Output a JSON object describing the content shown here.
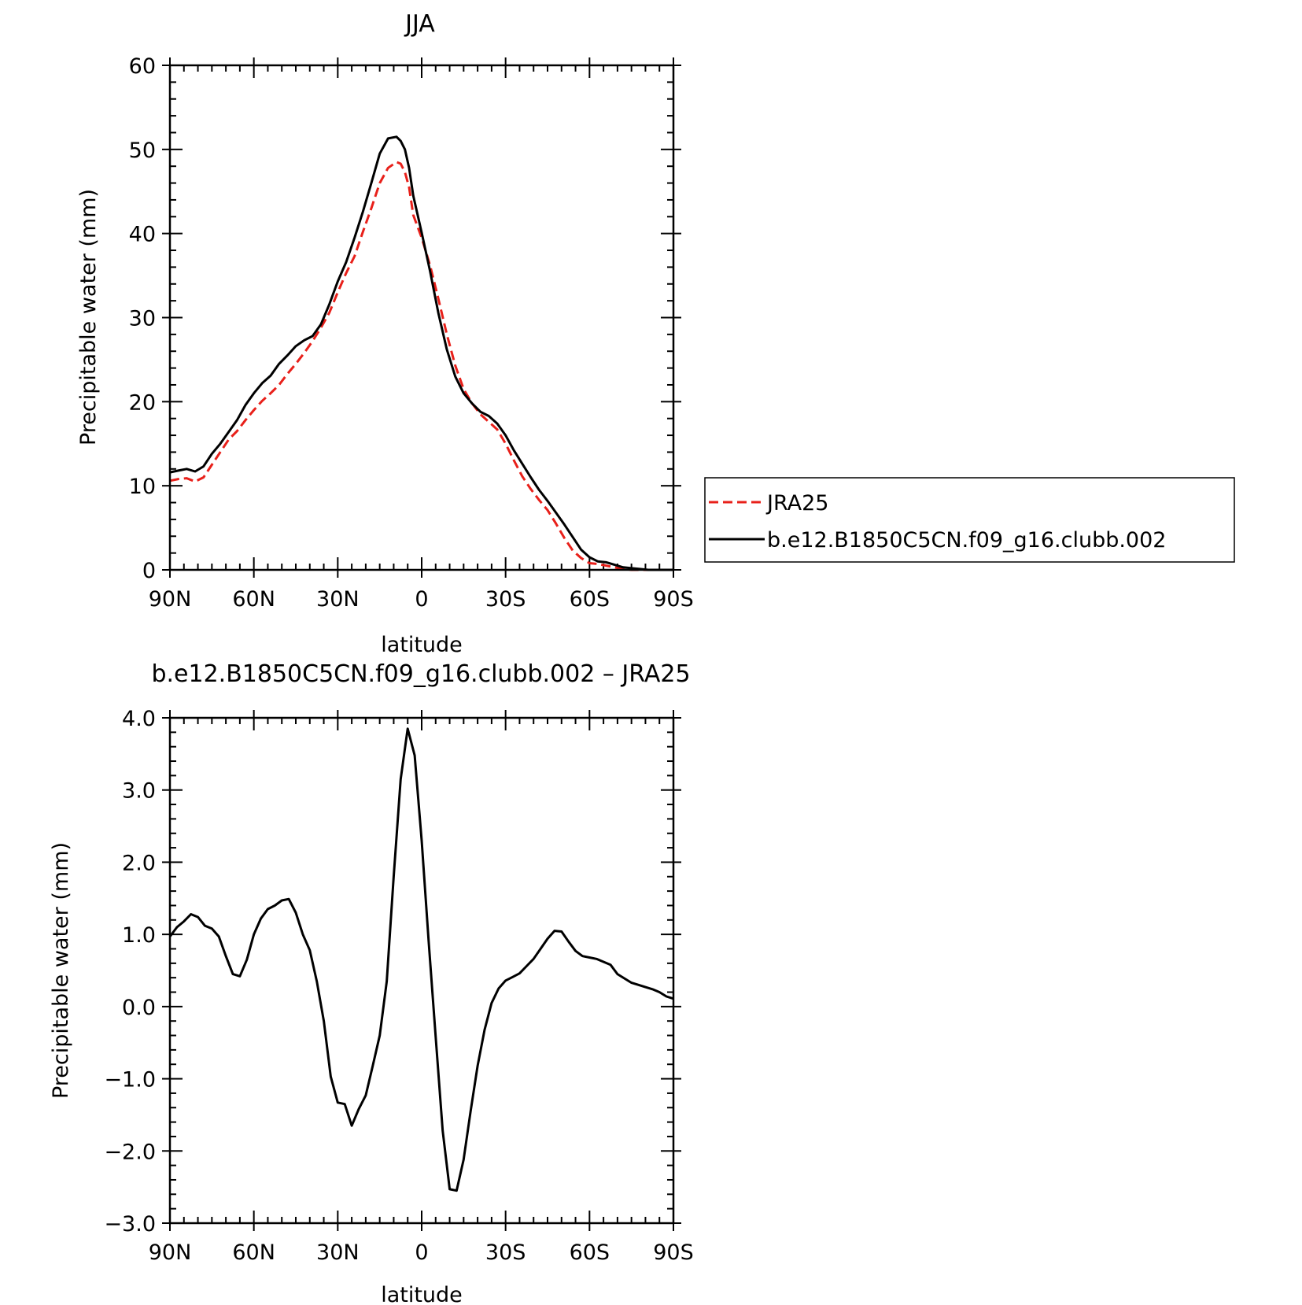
{
  "chart_data": [
    {
      "type": "line",
      "title": "JJA",
      "xlabel": "latitude",
      "ylabel": "Precipitable water (mm)",
      "xlim": [
        90,
        -90
      ],
      "ylim": [
        0,
        60
      ],
      "x_ticks": [
        90,
        60,
        30,
        0,
        -30,
        -60,
        -90
      ],
      "x_tick_labels": [
        "90N",
        "60N",
        "30N",
        "0",
        "30S",
        "60S",
        "90S"
      ],
      "y_ticks": [
        0,
        10,
        20,
        30,
        40,
        50,
        60
      ],
      "y_tick_labels": [
        "0",
        "10",
        "20",
        "30",
        "40",
        "50",
        "60"
      ],
      "legend_position": "right",
      "grid": false,
      "series": [
        {
          "name": "JRA25",
          "color": "#e8201a",
          "dash": true,
          "x": [
            90,
            87,
            84,
            81,
            78,
            75,
            72,
            69,
            66,
            63,
            60,
            57,
            54,
            51,
            48,
            45,
            42,
            39,
            36,
            33,
            30,
            27,
            24,
            21,
            18,
            15,
            12,
            9,
            7.5,
            6,
            4.5,
            3,
            0,
            -3,
            -6,
            -9,
            -12,
            -15,
            -18,
            -21,
            -24,
            -27,
            -30,
            -33,
            -36,
            -39,
            -42,
            -45,
            -48,
            -51,
            -54,
            -57,
            -60,
            -63,
            -66,
            -69,
            -72,
            -75,
            -78,
            -81,
            -84,
            -87,
            -90
          ],
          "values": [
            10.6,
            10.8,
            10.9,
            10.5,
            11,
            12.5,
            14,
            15.5,
            16.5,
            17.8,
            19,
            20.1,
            21,
            22,
            23.3,
            24.5,
            25.8,
            27.2,
            28.8,
            30.6,
            33,
            35.3,
            37.3,
            40.2,
            43,
            46,
            47.8,
            48.5,
            48.3,
            47.3,
            45.5,
            42.2,
            39.5,
            36.2,
            32.2,
            28,
            24.3,
            21.5,
            19.8,
            18.5,
            17.6,
            16.7,
            15,
            13,
            11.1,
            9.6,
            8.3,
            7.1,
            5.5,
            3.8,
            2.3,
            1.4,
            0.8,
            0.7,
            0.5,
            0.3,
            0.1,
            0,
            0,
            0,
            0,
            0,
            0
          ]
        },
        {
          "name": "b.e12.B1850C5CN.f09_g16.clubb.002",
          "color": "#000000",
          "dash": false,
          "x": [
            90,
            87,
            84,
            81,
            78,
            75,
            72,
            69,
            66,
            63,
            60,
            57,
            54,
            51,
            48,
            45,
            42,
            39,
            36,
            33,
            30,
            27,
            24,
            21,
            18,
            15,
            12,
            9,
            7.5,
            6,
            4.5,
            3,
            0,
            -3,
            -6,
            -9,
            -12,
            -15,
            -18,
            -21,
            -24,
            -27,
            -30,
            -33,
            -36,
            -39,
            -42,
            -45,
            -48,
            -51,
            -54,
            -57,
            -60,
            -63,
            -66,
            -69,
            -72,
            -75,
            -78,
            -81,
            -84,
            -87,
            -90
          ],
          "values": [
            11.6,
            11.8,
            12,
            11.7,
            12.3,
            13.8,
            15,
            16.4,
            17.8,
            19.6,
            21,
            22.2,
            23.1,
            24.5,
            25.5,
            26.6,
            27.3,
            27.8,
            29.2,
            31.6,
            34.3,
            36.6,
            39.5,
            42.6,
            46,
            49.5,
            51.3,
            51.5,
            51,
            50,
            47.8,
            44.5,
            40.1,
            35.5,
            30.5,
            26.2,
            23,
            21,
            19.8,
            18.8,
            18.3,
            17.4,
            16,
            14.2,
            12.6,
            11,
            9.5,
            8.2,
            6.8,
            5.4,
            3.9,
            2.4,
            1.5,
            1,
            0.9,
            0.6,
            0.3,
            0.2,
            0.1,
            0,
            0,
            0,
            0
          ]
        }
      ]
    },
    {
      "type": "line",
      "title": "b.e12.B1850C5CN.f09_g16.clubb.002 – JRA25",
      "xlabel": "latitude",
      "ylabel": "Precipitable water (mm)",
      "xlim": [
        90,
        -90
      ],
      "ylim": [
        -3.0,
        4.0
      ],
      "x_ticks": [
        90,
        60,
        30,
        0,
        -30,
        -60,
        -90
      ],
      "x_tick_labels": [
        "90N",
        "60N",
        "30N",
        "0",
        "30S",
        "60S",
        "90S"
      ],
      "y_ticks": [
        -3,
        -2,
        -1,
        0,
        1,
        2,
        3,
        4
      ],
      "y_tick_labels": [
        "−3.0",
        "−2.0",
        "−1.0",
        "0.0",
        "1.0",
        "2.0",
        "3.0",
        "4.0"
      ],
      "grid": false,
      "series": [
        {
          "color": "#000000",
          "dash": false,
          "x": [
            90,
            87.5,
            85,
            82.5,
            80,
            77.5,
            75,
            72.5,
            70,
            67.5,
            65,
            62.5,
            60,
            57.5,
            55,
            52.5,
            50,
            47.5,
            45,
            42.5,
            40,
            37.5,
            35,
            32.5,
            30,
            27.5,
            25,
            22.5,
            20,
            17.5,
            15,
            12.5,
            10,
            7.5,
            5,
            2.5,
            0,
            -2.5,
            -5,
            -7.5,
            -10,
            -12.5,
            -15,
            -17.5,
            -20,
            -22.5,
            -25,
            -27.5,
            -30,
            -32.5,
            -35,
            -37.5,
            -40,
            -42.5,
            -45,
            -47.5,
            -50,
            -52.5,
            -55,
            -57.5,
            -60,
            -62.5,
            -65,
            -67.5,
            -70,
            -72.5,
            -75,
            -77.5,
            -80,
            -82.5,
            -85,
            -87.5,
            -90
          ],
          "values": [
            0.97,
            1.1,
            1.18,
            1.28,
            1.24,
            1.12,
            1.08,
            0.97,
            0.7,
            0.45,
            0.42,
            0.65,
            1.0,
            1.22,
            1.35,
            1.4,
            1.47,
            1.49,
            1.3,
            1.0,
            0.78,
            0.35,
            -0.2,
            -0.97,
            -1.33,
            -1.35,
            -1.65,
            -1.42,
            -1.23,
            -0.82,
            -0.4,
            0.35,
            1.8,
            3.15,
            3.85,
            3.48,
            2.3,
            0.9,
            -0.42,
            -1.72,
            -2.53,
            -2.55,
            -2.12,
            -1.45,
            -0.82,
            -0.32,
            0.05,
            0.25,
            0.36,
            0.41,
            0.46,
            0.56,
            0.66,
            0.8,
            0.94,
            1.05,
            1.04,
            0.9,
            0.77,
            0.7,
            0.68,
            0.66,
            0.62,
            0.58,
            0.45,
            0.39,
            0.33,
            0.3,
            0.27,
            0.24,
            0.2,
            0.14,
            0.11
          ]
        }
      ]
    }
  ]
}
